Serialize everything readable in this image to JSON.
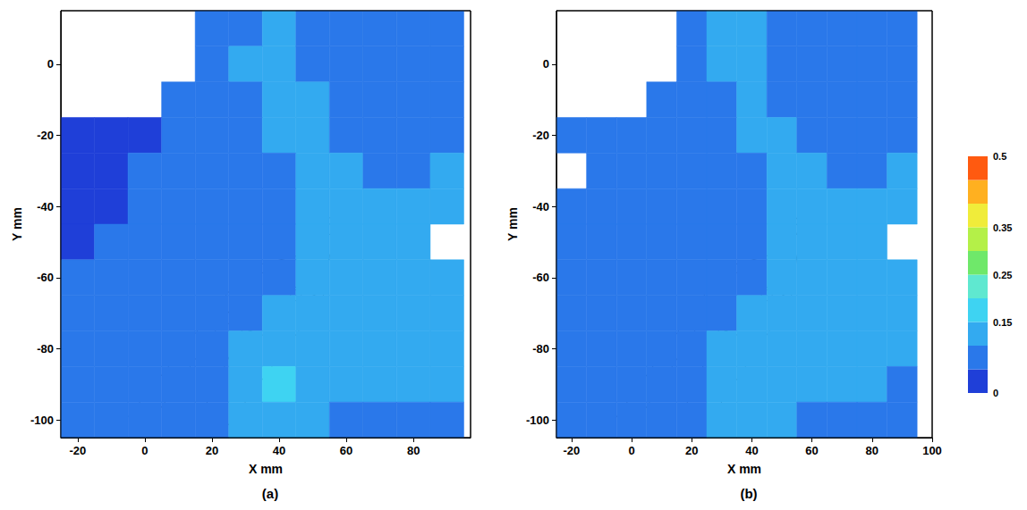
{
  "chart_data": [
    {
      "type": "heatmap",
      "label": "(a)",
      "x_label": "X mm",
      "y_label": "Y mm",
      "xlim": [
        -25,
        97
      ],
      "xticks": [
        -20,
        0,
        20,
        40,
        60,
        80
      ],
      "ylim": [
        -105,
        15
      ],
      "yticks": [
        -100,
        -80,
        -60,
        -40,
        -20,
        0
      ],
      "x": [
        -20,
        -10,
        0,
        10,
        20,
        30,
        40,
        50,
        60,
        70,
        80,
        90
      ],
      "y": [
        10,
        0,
        -10,
        -20,
        -30,
        -40,
        -50,
        -60,
        -70,
        -80,
        -90,
        -100
      ],
      "cells": [
        [
          null,
          null,
          null,
          null,
          0.08,
          0.09,
          0.1,
          0.08,
          0.07,
          0.07,
          0.07,
          0.07
        ],
        [
          null,
          null,
          null,
          null,
          0.09,
          0.1,
          0.11,
          0.09,
          0.08,
          0.07,
          0.07,
          0.07
        ],
        [
          null,
          null,
          null,
          0.06,
          0.07,
          0.09,
          0.11,
          0.1,
          0.08,
          0.08,
          0.07,
          0.08
        ],
        [
          0.04,
          0.04,
          0.04,
          0.05,
          0.06,
          0.08,
          0.1,
          0.11,
          0.09,
          0.08,
          0.08,
          0.09
        ],
        [
          0.04,
          0.04,
          0.05,
          0.05,
          0.06,
          0.07,
          0.09,
          0.11,
          0.1,
          0.09,
          0.09,
          0.12
        ],
        [
          0.04,
          0.04,
          0.05,
          0.05,
          0.06,
          0.07,
          0.08,
          0.1,
          0.11,
          0.1,
          0.11,
          0.14
        ],
        [
          0.04,
          0.05,
          0.05,
          0.05,
          0.06,
          0.07,
          0.09,
          0.1,
          0.11,
          0.11,
          0.12,
          null
        ],
        [
          0.05,
          0.05,
          0.06,
          0.06,
          0.07,
          0.08,
          0.09,
          0.1,
          0.11,
          0.11,
          0.12,
          0.11
        ],
        [
          0.05,
          0.05,
          0.06,
          0.07,
          0.08,
          0.09,
          0.1,
          0.11,
          0.11,
          0.12,
          0.12,
          0.11
        ],
        [
          0.05,
          0.06,
          0.06,
          0.07,
          0.08,
          0.1,
          0.12,
          0.12,
          0.11,
          0.11,
          0.12,
          0.11
        ],
        [
          0.06,
          0.06,
          0.07,
          0.08,
          0.09,
          0.12,
          0.15,
          0.13,
          0.11,
          0.1,
          0.11,
          0.1
        ],
        [
          0.06,
          0.06,
          0.07,
          0.07,
          0.08,
          0.1,
          0.12,
          0.11,
          0.09,
          0.08,
          0.08,
          0.07
        ]
      ]
    },
    {
      "type": "heatmap",
      "label": "(b)",
      "x_label": "X mm",
      "y_label": "Y mm",
      "xlim": [
        -25,
        100
      ],
      "xticks": [
        -20,
        0,
        20,
        40,
        60,
        80,
        100
      ],
      "ylim": [
        -105,
        15
      ],
      "yticks": [
        -100,
        -80,
        -60,
        -40,
        -20,
        0
      ],
      "x": [
        -20,
        -10,
        0,
        10,
        20,
        30,
        40,
        50,
        60,
        70,
        80,
        90
      ],
      "y": [
        10,
        0,
        -10,
        -20,
        -30,
        -40,
        -50,
        -60,
        -70,
        -80,
        -90,
        -100
      ],
      "cells": [
        [
          null,
          null,
          null,
          null,
          0.08,
          0.1,
          0.1,
          0.08,
          0.07,
          0.07,
          0.07,
          0.07
        ],
        [
          null,
          null,
          null,
          null,
          0.09,
          0.1,
          0.1,
          0.09,
          0.08,
          0.07,
          0.07,
          0.07
        ],
        [
          null,
          null,
          null,
          0.06,
          0.07,
          0.09,
          0.1,
          0.09,
          0.08,
          0.08,
          0.08,
          0.08
        ],
        [
          0.06,
          0.06,
          0.05,
          0.05,
          0.06,
          0.08,
          0.1,
          0.1,
          0.09,
          0.08,
          0.08,
          0.09
        ],
        [
          null,
          0.05,
          0.05,
          0.05,
          0.06,
          0.07,
          0.09,
          0.1,
          0.1,
          0.09,
          0.09,
          0.11
        ],
        [
          0.05,
          0.05,
          0.05,
          0.05,
          0.06,
          0.07,
          0.08,
          0.1,
          0.1,
          0.1,
          0.11,
          0.14
        ],
        [
          0.05,
          0.05,
          0.05,
          0.05,
          0.06,
          0.07,
          0.09,
          0.1,
          0.11,
          0.11,
          0.11,
          null
        ],
        [
          0.05,
          0.05,
          0.06,
          0.06,
          0.07,
          0.08,
          0.09,
          0.1,
          0.11,
          0.11,
          0.11,
          0.1
        ],
        [
          0.05,
          0.05,
          0.06,
          0.07,
          0.08,
          0.09,
          0.1,
          0.11,
          0.11,
          0.11,
          0.11,
          0.1
        ],
        [
          0.05,
          0.06,
          0.06,
          0.07,
          0.08,
          0.1,
          0.11,
          0.12,
          0.11,
          0.1,
          0.11,
          0.1
        ],
        [
          0.06,
          0.06,
          0.07,
          0.08,
          0.09,
          0.11,
          0.13,
          0.12,
          0.1,
          0.1,
          0.1,
          0.09
        ],
        [
          0.06,
          0.06,
          0.07,
          0.07,
          0.08,
          0.1,
          0.11,
          0.1,
          0.09,
          0.08,
          0.07,
          0.07
        ]
      ]
    }
  ],
  "colorbar": {
    "range": [
      0,
      0.5
    ],
    "ticks": [
      0,
      0.15,
      0.25,
      0.35,
      0.5
    ],
    "colors": [
      "#1f3fd8",
      "#2a78ea",
      "#33aaf0",
      "#3ed3f2",
      "#5fe8d0",
      "#6fe86a",
      "#b4f048",
      "#f0ec3a",
      "#ffb020",
      "#ff5a10"
    ]
  }
}
